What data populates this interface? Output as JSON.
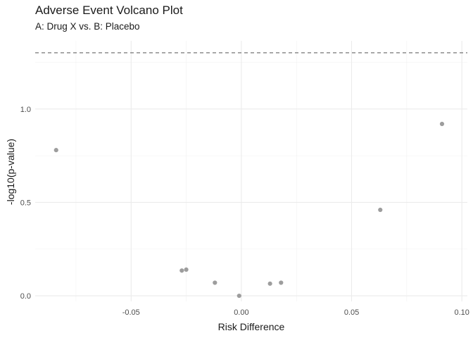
{
  "chart_data": {
    "type": "scatter",
    "title": "Adverse Event Volcano Plot",
    "subtitle": "A: Drug X vs. B: Placebo",
    "xlabel": "Risk Difference",
    "ylabel": "-log10(p-value)",
    "xlim": [
      -0.0935,
      0.1025
    ],
    "ylim": [
      -0.03,
      1.365
    ],
    "x_ticks": [
      -0.05,
      0.0,
      0.05,
      0.1
    ],
    "x_tick_labels": [
      "-0.05",
      "0.00",
      "0.05",
      "0.10"
    ],
    "y_ticks": [
      0.0,
      0.5,
      1.0
    ],
    "y_tick_labels": [
      "0.0",
      "0.5",
      "1.0"
    ],
    "grid": true,
    "point_color": "#8c8c8c",
    "reference_line": {
      "y": 1.301,
      "style": "dashed",
      "color": "#666666"
    },
    "points": [
      {
        "x": -0.084,
        "y": 0.78
      },
      {
        "x": -0.027,
        "y": 0.135
      },
      {
        "x": -0.025,
        "y": 0.14
      },
      {
        "x": -0.012,
        "y": 0.07
      },
      {
        "x": -0.001,
        "y": 0.0
      },
      {
        "x": 0.013,
        "y": 0.065
      },
      {
        "x": 0.018,
        "y": 0.07
      },
      {
        "x": 0.063,
        "y": 0.46
      },
      {
        "x": 0.091,
        "y": 0.92
      }
    ]
  }
}
